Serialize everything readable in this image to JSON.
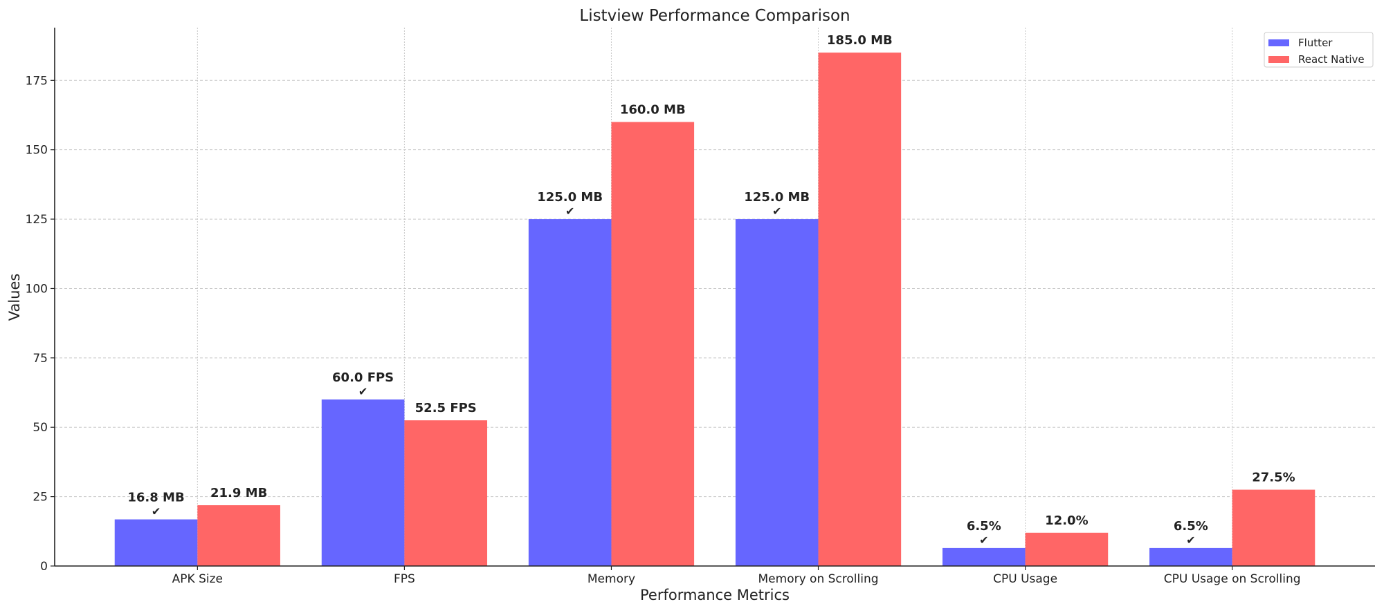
{
  "chart_data": {
    "type": "bar",
    "title": "Listview Performance Comparison",
    "xlabel": "Performance Metrics",
    "ylabel": "Values",
    "categories": [
      "APK Size",
      "FPS",
      "Memory",
      "Memory on Scrolling",
      "CPU Usage",
      "CPU Usage on Scrolling"
    ],
    "series": [
      {
        "name": "Flutter",
        "color": "#6666ff",
        "values": [
          16.8,
          60.0,
          125.0,
          125.0,
          6.5,
          6.5
        ],
        "labels": [
          "16.8 MB",
          "60.0 FPS",
          "125.0 MB",
          "125.0 MB",
          "6.5%",
          "6.5%"
        ]
      },
      {
        "name": "React Native",
        "color": "#ff6666",
        "values": [
          21.9,
          52.5,
          160.0,
          185.0,
          12.0,
          27.5
        ],
        "labels": [
          "21.9 MB",
          "52.5 FPS",
          "160.0 MB",
          "185.0 MB",
          "12.0%",
          "27.5%"
        ]
      }
    ],
    "winner_mark": "✔",
    "winner_series": [
      0,
      0,
      0,
      0,
      0,
      0
    ],
    "yticks": [
      0,
      25,
      50,
      75,
      100,
      125,
      150,
      175
    ],
    "ylim": [
      0,
      194
    ],
    "grid": true,
    "legend": "top-right"
  }
}
